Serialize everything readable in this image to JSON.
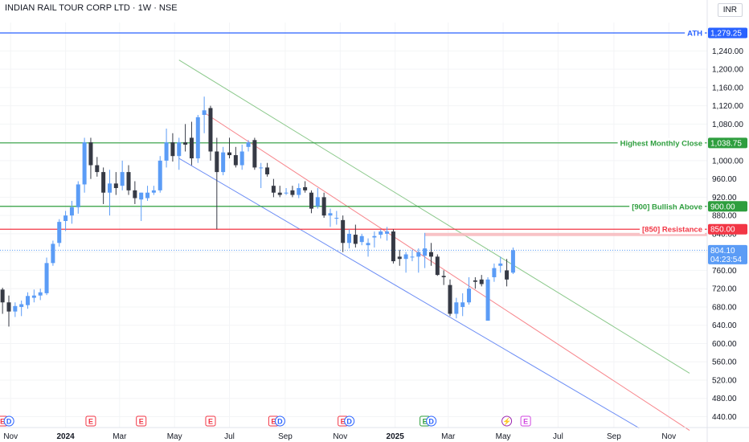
{
  "header": {
    "title": "INDIAN RAIL TOUR CORP LTD · 1W · NSE",
    "currency": "INR"
  },
  "colors": {
    "up": "#5b9cf6",
    "down": "#363a45",
    "ath": "#2962ff",
    "green": "#2e9e3e",
    "red": "#f23645",
    "channel_red": "#f7868c",
    "channel_blue": "#6d8ef5",
    "channel_green": "#8cc98c"
  },
  "chart_data": {
    "type": "candlestick",
    "ylim": [
      400,
      1300
    ],
    "y_ticks": [
      "440.00",
      "480.00",
      "520.00",
      "560.00",
      "600.00",
      "640.00",
      "680.00",
      "720.00",
      "760.00",
      "800.00",
      "840.00",
      "880.00",
      "920.00",
      "960.00",
      "1,000.00",
      "1,040.00",
      "1,080.00",
      "1,120.00",
      "1,160.00",
      "1,200.00",
      "1,240.00"
    ],
    "x_ticks": [
      {
        "label": "Nov",
        "x": "2023-11"
      },
      {
        "label": "2024",
        "x": "2024-01"
      },
      {
        "label": "Mar",
        "x": "2024-03"
      },
      {
        "label": "May",
        "x": "2024-05"
      },
      {
        "label": "Jul",
        "x": "2024-07"
      },
      {
        "label": "Sep",
        "x": "2024-09"
      },
      {
        "label": "Nov",
        "x": "2024-11"
      },
      {
        "label": "2025",
        "x": "2025-01"
      },
      {
        "label": "Mar",
        "x": "2025-03"
      },
      {
        "label": "May",
        "x": "2025-05"
      },
      {
        "label": "Jul",
        "x": "2025-07"
      },
      {
        "label": "Sep",
        "x": "2025-09"
      },
      {
        "label": "Nov",
        "x": "2025-11"
      }
    ],
    "candles": [
      {
        "x": "2023-10-16",
        "o": 735,
        "h": 760,
        "l": 712,
        "c": 718
      },
      {
        "x": "2023-10-23",
        "o": 718,
        "h": 722,
        "l": 665,
        "c": 690
      },
      {
        "x": "2023-10-30",
        "o": 690,
        "h": 705,
        "l": 637,
        "c": 670
      },
      {
        "x": "2023-11-06",
        "o": 670,
        "h": 690,
        "l": 658,
        "c": 682
      },
      {
        "x": "2023-11-13",
        "o": 680,
        "h": 694,
        "l": 660,
        "c": 686
      },
      {
        "x": "2023-11-20",
        "o": 684,
        "h": 712,
        "l": 676,
        "c": 704
      },
      {
        "x": "2023-11-27",
        "o": 700,
        "h": 718,
        "l": 690,
        "c": 705
      },
      {
        "x": "2023-12-04",
        "o": 705,
        "h": 720,
        "l": 695,
        "c": 712
      },
      {
        "x": "2023-12-11",
        "o": 710,
        "h": 788,
        "l": 706,
        "c": 776
      },
      {
        "x": "2023-12-18",
        "o": 776,
        "h": 825,
        "l": 770,
        "c": 818
      },
      {
        "x": "2023-12-25",
        "o": 820,
        "h": 872,
        "l": 812,
        "c": 866
      },
      {
        "x": "2024-01-01",
        "o": 868,
        "h": 890,
        "l": 846,
        "c": 880
      },
      {
        "x": "2024-01-08",
        "o": 880,
        "h": 912,
        "l": 862,
        "c": 898
      },
      {
        "x": "2024-01-15",
        "o": 898,
        "h": 955,
        "l": 884,
        "c": 948
      },
      {
        "x": "2024-01-22",
        "o": 948,
        "h": 1050,
        "l": 930,
        "c": 1040
      },
      {
        "x": "2024-01-29",
        "o": 1040,
        "h": 1050,
        "l": 960,
        "c": 990
      },
      {
        "x": "2024-02-05",
        "o": 990,
        "h": 1008,
        "l": 965,
        "c": 975
      },
      {
        "x": "2024-02-12",
        "o": 975,
        "h": 985,
        "l": 905,
        "c": 930
      },
      {
        "x": "2024-02-19",
        "o": 930,
        "h": 980,
        "l": 880,
        "c": 950
      },
      {
        "x": "2024-02-26",
        "o": 950,
        "h": 975,
        "l": 925,
        "c": 940
      },
      {
        "x": "2024-03-04",
        "o": 945,
        "h": 1000,
        "l": 935,
        "c": 975
      },
      {
        "x": "2024-03-11",
        "o": 975,
        "h": 990,
        "l": 925,
        "c": 935
      },
      {
        "x": "2024-03-18",
        "o": 935,
        "h": 955,
        "l": 905,
        "c": 918
      },
      {
        "x": "2024-03-25",
        "o": 915,
        "h": 930,
        "l": 868,
        "c": 930
      },
      {
        "x": "2024-04-01",
        "o": 918,
        "h": 945,
        "l": 912,
        "c": 930
      },
      {
        "x": "2024-04-08",
        "o": 930,
        "h": 945,
        "l": 925,
        "c": 935
      },
      {
        "x": "2024-04-15",
        "o": 935,
        "h": 1010,
        "l": 930,
        "c": 1000
      },
      {
        "x": "2024-04-22",
        "o": 1000,
        "h": 1070,
        "l": 985,
        "c": 1040
      },
      {
        "x": "2024-04-29",
        "o": 1040,
        "h": 1060,
        "l": 998,
        "c": 1010
      },
      {
        "x": "2024-05-06",
        "o": 1010,
        "h": 1050,
        "l": 980,
        "c": 1040
      },
      {
        "x": "2024-05-13",
        "o": 1040,
        "h": 1080,
        "l": 1020,
        "c": 1035
      },
      {
        "x": "2024-05-20",
        "o": 1050,
        "h": 1085,
        "l": 990,
        "c": 1005
      },
      {
        "x": "2024-05-27",
        "o": 1005,
        "h": 1100,
        "l": 995,
        "c": 1095
      },
      {
        "x": "2024-06-03",
        "o": 1100,
        "h": 1140,
        "l": 1060,
        "c": 1110
      },
      {
        "x": "2024-06-10",
        "o": 1115,
        "h": 1120,
        "l": 1000,
        "c": 1020
      },
      {
        "x": "2024-06-17",
        "o": 1020,
        "h": 1050,
        "l": 850,
        "c": 975
      },
      {
        "x": "2024-06-24",
        "o": 975,
        "h": 1030,
        "l": 968,
        "c": 1018
      },
      {
        "x": "2024-07-01",
        "o": 1018,
        "h": 1050,
        "l": 1005,
        "c": 1012
      },
      {
        "x": "2024-07-08",
        "o": 1012,
        "h": 1030,
        "l": 985,
        "c": 990
      },
      {
        "x": "2024-07-15",
        "o": 990,
        "h": 1035,
        "l": 980,
        "c": 1020
      },
      {
        "x": "2024-07-22",
        "o": 1030,
        "h": 1045,
        "l": 1020,
        "c": 1040
      },
      {
        "x": "2024-07-29",
        "o": 1045,
        "h": 1050,
        "l": 980,
        "c": 985
      },
      {
        "x": "2024-08-05",
        "o": 985,
        "h": 995,
        "l": 940,
        "c": 985
      },
      {
        "x": "2024-08-12",
        "o": 985,
        "h": 995,
        "l": 965,
        "c": 970
      },
      {
        "x": "2024-08-19",
        "o": 945,
        "h": 960,
        "l": 920,
        "c": 930
      },
      {
        "x": "2024-08-26",
        "o": 930,
        "h": 945,
        "l": 920,
        "c": 925
      },
      {
        "x": "2024-09-02",
        "o": 930,
        "h": 940,
        "l": 925,
        "c": 930
      },
      {
        "x": "2024-09-09",
        "o": 935,
        "h": 945,
        "l": 920,
        "c": 925
      },
      {
        "x": "2024-09-16",
        "o": 925,
        "h": 950,
        "l": 918,
        "c": 940
      },
      {
        "x": "2024-09-23",
        "o": 942,
        "h": 955,
        "l": 930,
        "c": 935
      },
      {
        "x": "2024-09-30",
        "o": 930,
        "h": 935,
        "l": 885,
        "c": 895
      },
      {
        "x": "2024-10-07",
        "o": 900,
        "h": 940,
        "l": 895,
        "c": 920
      },
      {
        "x": "2024-10-14",
        "o": 920,
        "h": 930,
        "l": 875,
        "c": 880
      },
      {
        "x": "2024-10-21",
        "o": 880,
        "h": 895,
        "l": 855,
        "c": 885
      },
      {
        "x": "2024-10-28",
        "o": 875,
        "h": 890,
        "l": 860,
        "c": 875
      },
      {
        "x": "2024-11-04",
        "o": 870,
        "h": 880,
        "l": 800,
        "c": 820
      },
      {
        "x": "2024-11-11",
        "o": 820,
        "h": 850,
        "l": 808,
        "c": 840
      },
      {
        "x": "2024-11-18",
        "o": 838,
        "h": 860,
        "l": 810,
        "c": 818
      },
      {
        "x": "2024-11-25",
        "o": 822,
        "h": 840,
        "l": 815,
        "c": 835
      },
      {
        "x": "2024-12-02",
        "o": 815,
        "h": 830,
        "l": 790,
        "c": 820
      },
      {
        "x": "2024-12-09",
        "o": 832,
        "h": 845,
        "l": 810,
        "c": 835
      },
      {
        "x": "2024-12-16",
        "o": 838,
        "h": 850,
        "l": 830,
        "c": 845
      },
      {
        "x": "2024-12-23",
        "o": 840,
        "h": 855,
        "l": 825,
        "c": 845
      },
      {
        "x": "2024-12-30",
        "o": 845,
        "h": 850,
        "l": 775,
        "c": 780
      },
      {
        "x": "2025-01-06",
        "o": 790,
        "h": 805,
        "l": 770,
        "c": 785
      },
      {
        "x": "2025-01-13",
        "o": 785,
        "h": 800,
        "l": 755,
        "c": 795
      },
      {
        "x": "2025-01-20",
        "o": 790,
        "h": 805,
        "l": 780,
        "c": 790
      },
      {
        "x": "2025-01-27",
        "o": 790,
        "h": 808,
        "l": 755,
        "c": 800
      },
      {
        "x": "2025-02-03",
        "o": 792,
        "h": 842,
        "l": 765,
        "c": 808
      },
      {
        "x": "2025-02-10",
        "o": 800,
        "h": 820,
        "l": 770,
        "c": 790
      },
      {
        "x": "2025-02-17",
        "o": 790,
        "h": 795,
        "l": 748,
        "c": 750
      },
      {
        "x": "2025-02-24",
        "o": 748,
        "h": 760,
        "l": 728,
        "c": 745
      },
      {
        "x": "2025-03-03",
        "o": 728,
        "h": 740,
        "l": 660,
        "c": 665
      },
      {
        "x": "2025-03-10",
        "o": 665,
        "h": 700,
        "l": 655,
        "c": 690
      },
      {
        "x": "2025-03-17",
        "o": 680,
        "h": 710,
        "l": 660,
        "c": 690
      },
      {
        "x": "2025-03-24",
        "o": 690,
        "h": 745,
        "l": 685,
        "c": 720
      },
      {
        "x": "2025-03-31",
        "o": 738,
        "h": 745,
        "l": 720,
        "c": 735
      },
      {
        "x": "2025-04-07",
        "o": 740,
        "h": 750,
        "l": 725,
        "c": 730
      },
      {
        "x": "2025-04-14",
        "o": 650,
        "h": 745,
        "l": 650,
        "c": 740
      },
      {
        "x": "2025-04-21",
        "o": 745,
        "h": 775,
        "l": 735,
        "c": 765
      },
      {
        "x": "2025-04-28",
        "o": 770,
        "h": 790,
        "l": 755,
        "c": 775
      },
      {
        "x": "2025-05-05",
        "o": 760,
        "h": 785,
        "l": 725,
        "c": 740
      },
      {
        "x": "2025-05-12",
        "o": 755,
        "h": 810,
        "l": 752,
        "c": 804.1
      }
    ],
    "horizontal_levels": [
      {
        "label": "ATH",
        "value": 1279.25,
        "badge": "1,279.25",
        "color": "#2962ff"
      },
      {
        "label": "Highest Monthly Close",
        "value": 1038.75,
        "badge": "1,038.75",
        "color": "#2e9e3e"
      },
      {
        "label": "[900] Bullish Above",
        "value": 900,
        "badge": "900.00",
        "color": "#2e9e3e"
      },
      {
        "label": "[850] Resistance",
        "value": 850,
        "badge": "850.00",
        "color": "#f23645"
      }
    ],
    "last_price": {
      "value": 804.1,
      "badge": "804.10",
      "countdown": "04:23:54"
    },
    "trendlines": [
      {
        "color": "#f7868c",
        "x1": "2024-06-03",
        "y1": 1105,
        "x2": "2025-11-24",
        "y2": 410
      },
      {
        "color": "#6d8ef5",
        "x1": "2024-05-06",
        "y1": 1005,
        "x2": "2025-09-29",
        "y2": 415
      },
      {
        "color": "#8cc98c",
        "x1": "2024-05-06",
        "y1": 1220,
        "x2": "2025-11-24",
        "y2": 535
      }
    ],
    "event_markers": [
      {
        "x": "2023-10-23",
        "icons": [
          "E",
          "D"
        ]
      },
      {
        "x": "2024-01-29",
        "icons": [
          "E"
        ]
      },
      {
        "x": "2024-03-25",
        "icons": [
          "E"
        ]
      },
      {
        "x": "2024-06-10",
        "icons": [
          "E"
        ]
      },
      {
        "x": "2024-08-19",
        "icons": [
          "E",
          "D"
        ]
      },
      {
        "x": "2024-11-04",
        "icons": [
          "E",
          "D"
        ]
      },
      {
        "x": "2025-02-03",
        "icons": [
          "E",
          "D"
        ]
      },
      {
        "x": "2025-05-05",
        "icons": [
          "⚡"
        ]
      },
      {
        "x": "2025-05-26",
        "icons": [
          "E"
        ]
      }
    ]
  }
}
